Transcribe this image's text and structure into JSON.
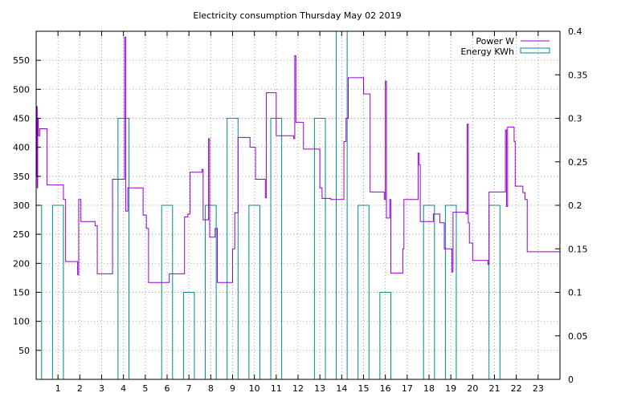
{
  "chart_data": {
    "type": "line",
    "title": "Electricity consumption Thursday May 02 2019",
    "xlabel": "",
    "ylabel": "",
    "xlim": [
      0,
      24
    ],
    "ylim": [
      0,
      600
    ],
    "y2lim": [
      0,
      0.4
    ],
    "x_ticks": [
      1,
      2,
      3,
      4,
      5,
      6,
      7,
      8,
      9,
      10,
      11,
      12,
      13,
      14,
      15,
      16,
      17,
      18,
      19,
      20,
      21,
      22,
      23
    ],
    "y_ticks": [
      50,
      100,
      150,
      200,
      250,
      300,
      350,
      400,
      450,
      500,
      550
    ],
    "y2_ticks": [
      0,
      0.05,
      0.1,
      0.15,
      0.2,
      0.25,
      0.3,
      0.35,
      0.4
    ],
    "grid": true,
    "legend_position": "top-right",
    "series": [
      {
        "name": "Power W",
        "axis": "y",
        "color": "#9400d3",
        "style": "step",
        "points": [
          [
            0.0,
            350
          ],
          [
            0.02,
            470
          ],
          [
            0.05,
            330
          ],
          [
            0.07,
            450
          ],
          [
            0.1,
            420
          ],
          [
            0.17,
            432
          ],
          [
            0.5,
            335
          ],
          [
            1.25,
            310
          ],
          [
            1.35,
            203
          ],
          [
            1.9,
            180
          ],
          [
            1.95,
            310
          ],
          [
            2.05,
            272
          ],
          [
            2.7,
            265
          ],
          [
            2.8,
            182
          ],
          [
            3.5,
            345
          ],
          [
            3.95,
            345
          ],
          [
            4.05,
            590
          ],
          [
            4.1,
            290
          ],
          [
            4.2,
            330
          ],
          [
            4.9,
            283
          ],
          [
            5.05,
            260
          ],
          [
            5.15,
            167
          ],
          [
            6.1,
            182
          ],
          [
            6.8,
            280
          ],
          [
            6.95,
            285
          ],
          [
            7.05,
            357
          ],
          [
            7.6,
            362
          ],
          [
            7.65,
            275
          ],
          [
            7.9,
            415
          ],
          [
            7.95,
            245
          ],
          [
            8.2,
            260
          ],
          [
            8.3,
            167
          ],
          [
            9.0,
            225
          ],
          [
            9.1,
            287
          ],
          [
            9.25,
            417
          ],
          [
            9.8,
            400
          ],
          [
            10.05,
            345
          ],
          [
            10.5,
            313
          ],
          [
            10.55,
            494
          ],
          [
            11.0,
            420
          ],
          [
            11.8,
            415
          ],
          [
            11.85,
            558
          ],
          [
            11.9,
            443
          ],
          [
            12.25,
            397
          ],
          [
            13.0,
            330
          ],
          [
            13.1,
            312
          ],
          [
            13.5,
            310
          ],
          [
            14.0,
            310
          ],
          [
            14.1,
            410
          ],
          [
            14.2,
            450
          ],
          [
            14.3,
            520
          ],
          [
            15.0,
            492
          ],
          [
            15.3,
            323
          ],
          [
            15.95,
            310
          ],
          [
            16.0,
            514
          ],
          [
            16.05,
            278
          ],
          [
            16.2,
            310
          ],
          [
            16.25,
            183
          ],
          [
            16.8,
            225
          ],
          [
            16.85,
            310
          ],
          [
            17.5,
            390
          ],
          [
            17.55,
            370
          ],
          [
            17.6,
            272
          ],
          [
            18.2,
            285
          ],
          [
            18.5,
            270
          ],
          [
            18.7,
            225
          ],
          [
            19.0,
            225
          ],
          [
            19.05,
            185
          ],
          [
            19.1,
            288
          ],
          [
            19.7,
            285
          ],
          [
            19.75,
            440
          ],
          [
            19.8,
            270
          ],
          [
            19.85,
            235
          ],
          [
            20.0,
            205
          ],
          [
            20.7,
            198
          ],
          [
            20.75,
            323
          ],
          [
            21.5,
            430
          ],
          [
            21.55,
            298
          ],
          [
            21.6,
            435
          ],
          [
            21.9,
            410
          ],
          [
            21.95,
            333
          ],
          [
            22.3,
            322
          ],
          [
            22.4,
            310
          ],
          [
            22.5,
            220
          ],
          [
            24.0,
            220
          ]
        ]
      },
      {
        "name": "Energy KWh",
        "axis": "y2",
        "color": "#008b8b",
        "style": "bars",
        "bar_width": 0.5,
        "bars": [
          [
            0.0,
            0.2
          ],
          [
            1.0,
            0.2
          ],
          [
            4.0,
            0.3
          ],
          [
            6.0,
            0.2
          ],
          [
            7.0,
            0.1
          ],
          [
            8.0,
            0.2
          ],
          [
            9.0,
            0.3
          ],
          [
            10.0,
            0.2
          ],
          [
            11.0,
            0.3
          ],
          [
            13.0,
            0.3
          ],
          [
            14.0,
            0.4
          ],
          [
            15.0,
            0.2
          ],
          [
            16.0,
            0.1
          ],
          [
            18.0,
            0.2
          ],
          [
            19.0,
            0.2
          ],
          [
            21.0,
            0.2
          ]
        ]
      }
    ]
  }
}
